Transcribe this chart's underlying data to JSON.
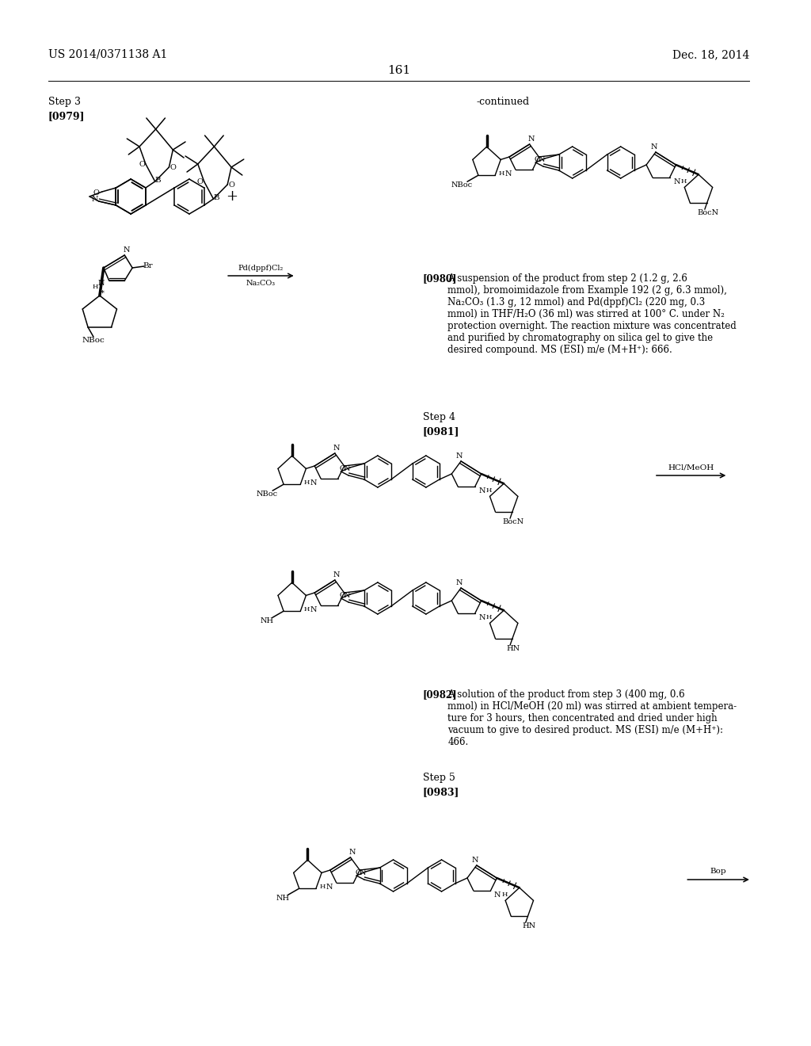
{
  "background_color": "#ffffff",
  "font_color": "#000000",
  "header_left": "US 2014/0371138 A1",
  "header_right": "Dec. 18, 2014",
  "page_number": "161",
  "step3_label": "Step 3",
  "step3_ref": "[0979]",
  "continued_label": "-continued",
  "ref0980_bold": "[0980]",
  "ref0980_text": "A suspension of the product from step 2 (1.2 g, 2.6\nmmol), bromoimidazole from Example 192 (2 g, 6.3 mmol),\nNa₂CO₃ (1.3 g, 12 mmol) and Pd(dppf)Cl₂ (220 mg, 0.3\nmmol) in THF/H₂O (36 ml) was stirred at 100° C. under N₂\nprotection overnight. The reaction mixture was concentrated\nand purified by chromatography on silica gel to give the\ndesired compound. MS (ESI) m/e (M+H⁺): 666.",
  "step4_label": "Step 4",
  "step4_ref": "[0981]",
  "ref0982_bold": "[0982]",
  "ref0982_text": "A solution of the product from step 3 (400 mg, 0.6\nmmol) in HCl/MeOH (20 ml) was stirred at ambient tempera-\nture for 3 hours, then concentrated and dried under high\nvacuum to give to desired product. MS (ESI) m/e (M+H⁺):\n466.",
  "step5_label": "Step 5",
  "step5_ref": "[0983]",
  "arrow_reagent_step3_over": "Pd(dppf)Cl₂",
  "arrow_reagent_step3_under": "Na₂CO₃",
  "arrow_reagent_step4": "HCl/MeOH",
  "arrow_reagent_step5": "Bop"
}
